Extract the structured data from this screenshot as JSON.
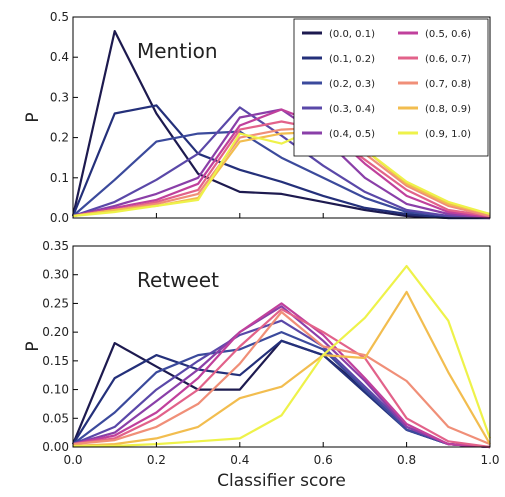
{
  "chart_data": [
    {
      "type": "line",
      "annotation": "Mention",
      "xlabel": "",
      "ylabel": "P",
      "xlim": [
        0.0,
        1.0
      ],
      "ylim": [
        0.0,
        0.5
      ],
      "yticks": [
        "0.0",
        "0.1",
        "0.2",
        "0.3",
        "0.4",
        "0.5"
      ],
      "xticks": [],
      "legend_placement": "top-right",
      "x": [
        0.0,
        0.1,
        0.2,
        0.3,
        0.4,
        0.5,
        0.6,
        0.7,
        0.8,
        0.9,
        1.0
      ],
      "series": [
        {
          "name": "(0.0, 0.1)",
          "color": "#1d1a4f",
          "values": [
            0.005,
            0.465,
            0.26,
            0.11,
            0.065,
            0.06,
            0.04,
            0.02,
            0.005,
            0.0,
            0.0
          ]
        },
        {
          "name": "(0.1, 0.2)",
          "color": "#24307a",
          "values": [
            0.005,
            0.26,
            0.28,
            0.16,
            0.12,
            0.09,
            0.055,
            0.025,
            0.01,
            0.0,
            0.0
          ]
        },
        {
          "name": "(0.2, 0.3)",
          "color": "#3b4a9c",
          "values": [
            0.005,
            0.095,
            0.19,
            0.21,
            0.215,
            0.15,
            0.1,
            0.05,
            0.015,
            0.005,
            0.0
          ]
        },
        {
          "name": "(0.3, 0.4)",
          "color": "#5a48a8",
          "values": [
            0.005,
            0.04,
            0.095,
            0.16,
            0.275,
            0.205,
            0.13,
            0.065,
            0.02,
            0.005,
            0.0
          ]
        },
        {
          "name": "(0.4, 0.5)",
          "color": "#8a3fa8",
          "values": [
            0.005,
            0.03,
            0.06,
            0.1,
            0.25,
            0.27,
            0.2,
            0.1,
            0.035,
            0.01,
            0.0
          ]
        },
        {
          "name": "(0.5, 0.6)",
          "color": "#c0409c",
          "values": [
            0.005,
            0.025,
            0.045,
            0.085,
            0.23,
            0.27,
            0.23,
            0.135,
            0.055,
            0.015,
            0.002
          ]
        },
        {
          "name": "(0.6, 0.7)",
          "color": "#e2628a",
          "values": [
            0.005,
            0.02,
            0.04,
            0.07,
            0.22,
            0.24,
            0.22,
            0.145,
            0.07,
            0.02,
            0.005
          ]
        },
        {
          "name": "(0.7, 0.8)",
          "color": "#f08f78",
          "values": [
            0.005,
            0.02,
            0.035,
            0.06,
            0.2,
            0.22,
            0.225,
            0.16,
            0.08,
            0.03,
            0.005
          ]
        },
        {
          "name": "(0.8, 0.9)",
          "color": "#f2bd4f",
          "values": [
            0.005,
            0.02,
            0.03,
            0.05,
            0.19,
            0.21,
            0.215,
            0.17,
            0.085,
            0.035,
            0.01
          ]
        },
        {
          "name": "(0.9, 1.0)",
          "color": "#eef24a",
          "values": [
            0.005,
            0.015,
            0.03,
            0.045,
            0.21,
            0.185,
            0.23,
            0.17,
            0.09,
            0.04,
            0.01
          ]
        }
      ]
    },
    {
      "type": "line",
      "annotation": "Retweet",
      "xlabel": "Classifier score",
      "ylabel": "P",
      "xlim": [
        0.0,
        1.0
      ],
      "ylim": [
        0.0,
        0.35
      ],
      "yticks": [
        "0.00",
        "0.05",
        "0.10",
        "0.15",
        "0.20",
        "0.25",
        "0.30",
        "0.35"
      ],
      "xticks": [
        "0.0",
        "0.2",
        "0.4",
        "0.6",
        "0.8",
        "1.0"
      ],
      "x": [
        0.0,
        0.1,
        0.2,
        0.3,
        0.4,
        0.5,
        0.6,
        0.7,
        0.8,
        0.9,
        1.0
      ],
      "series": [
        {
          "name": "(0.0, 0.1)",
          "color": "#1d1a4f",
          "values": [
            0.005,
            0.181,
            0.14,
            0.1,
            0.1,
            0.185,
            0.16,
            0.1,
            0.03,
            0.005,
            0.0
          ]
        },
        {
          "name": "(0.1, 0.2)",
          "color": "#24307a",
          "values": [
            0.005,
            0.12,
            0.16,
            0.135,
            0.125,
            0.185,
            0.16,
            0.095,
            0.03,
            0.005,
            0.0
          ]
        },
        {
          "name": "(0.2, 0.3)",
          "color": "#3b4a9c",
          "values": [
            0.005,
            0.06,
            0.13,
            0.16,
            0.17,
            0.2,
            0.17,
            0.1,
            0.03,
            0.005,
            0.0
          ]
        },
        {
          "name": "(0.3, 0.4)",
          "color": "#5a48a8",
          "values": [
            0.005,
            0.035,
            0.1,
            0.15,
            0.195,
            0.22,
            0.175,
            0.105,
            0.035,
            0.005,
            0.0
          ]
        },
        {
          "name": "(0.4, 0.5)",
          "color": "#8a3fa8",
          "values": [
            0.005,
            0.025,
            0.08,
            0.135,
            0.2,
            0.245,
            0.185,
            0.115,
            0.035,
            0.005,
            0.0
          ]
        },
        {
          "name": "(0.5, 0.6)",
          "color": "#c0409c",
          "values": [
            0.005,
            0.02,
            0.06,
            0.12,
            0.2,
            0.25,
            0.195,
            0.12,
            0.04,
            0.005,
            0.0
          ]
        },
        {
          "name": "(0.6, 0.7)",
          "color": "#e2628a",
          "values": [
            0.005,
            0.015,
            0.05,
            0.1,
            0.175,
            0.24,
            0.2,
            0.155,
            0.05,
            0.01,
            0.0
          ]
        },
        {
          "name": "(0.7, 0.8)",
          "color": "#f08f78",
          "values": [
            0.005,
            0.012,
            0.035,
            0.075,
            0.145,
            0.235,
            0.175,
            0.16,
            0.115,
            0.035,
            0.005
          ]
        },
        {
          "name": "(0.8, 0.9)",
          "color": "#f2bd4f",
          "values": [
            0.002,
            0.005,
            0.015,
            0.035,
            0.085,
            0.105,
            0.16,
            0.155,
            0.27,
            0.13,
            0.005
          ]
        },
        {
          "name": "(0.9, 1.0)",
          "color": "#eef24a",
          "values": [
            0.001,
            0.002,
            0.005,
            0.01,
            0.015,
            0.055,
            0.16,
            0.225,
            0.315,
            0.22,
            0.015
          ]
        }
      ]
    }
  ]
}
